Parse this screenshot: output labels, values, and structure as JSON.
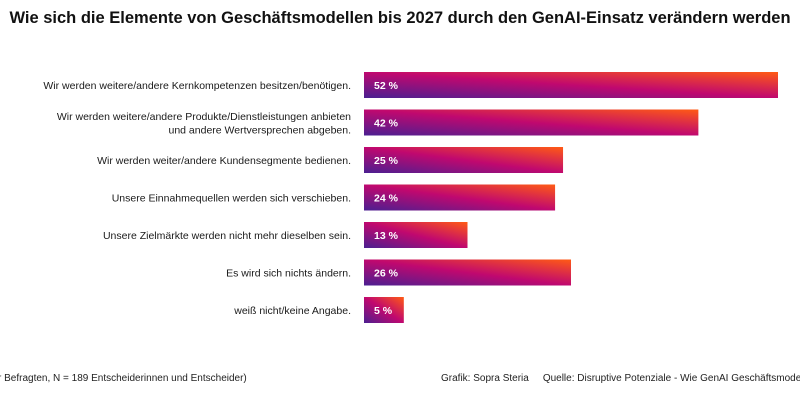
{
  "chart_data": {
    "type": "bar",
    "orientation": "horizontal",
    "title": "Wie sich die Elemente von Geschäftsmodellen bis 2027 durch den GenAI-Einsatz verändern werden",
    "categories": [
      [
        "Wir werden weitere/andere Kernkompetenzen besitzen/benötigen."
      ],
      [
        "Wir werden weitere/andere Produkte/Dienstleistungen anbieten",
        "und andere Wertversprechen abgeben."
      ],
      [
        "Wir werden weiter/andere Kundensegmente bedienen."
      ],
      [
        "Unsere Einnahmequellen werden sich verschieben."
      ],
      [
        "Unsere Zielmärkte werden nicht mehr dieselben sein."
      ],
      [
        "Es wird sich nichts ändern."
      ],
      [
        "weiß nicht/keine Angabe."
      ]
    ],
    "values": [
      52,
      42,
      25,
      24,
      13,
      26,
      5
    ],
    "value_labels": [
      "52 %",
      "42 %",
      "25 %",
      "24 %",
      "13 %",
      "26 %",
      "5 %"
    ],
    "unit": "%",
    "xlim": [
      0,
      52
    ],
    "gradient_colors": [
      "#4b1f91",
      "#c0086f",
      "#ff5a14"
    ]
  },
  "footer": {
    "left": "r Befragten, N = 189 Entscheiderinnen und Entscheider)",
    "credit": "Grafik: Sopra Steria",
    "source": "Quelle: Disruptive Potenziale - Wie GenAI Geschäftsmodelle neu"
  }
}
